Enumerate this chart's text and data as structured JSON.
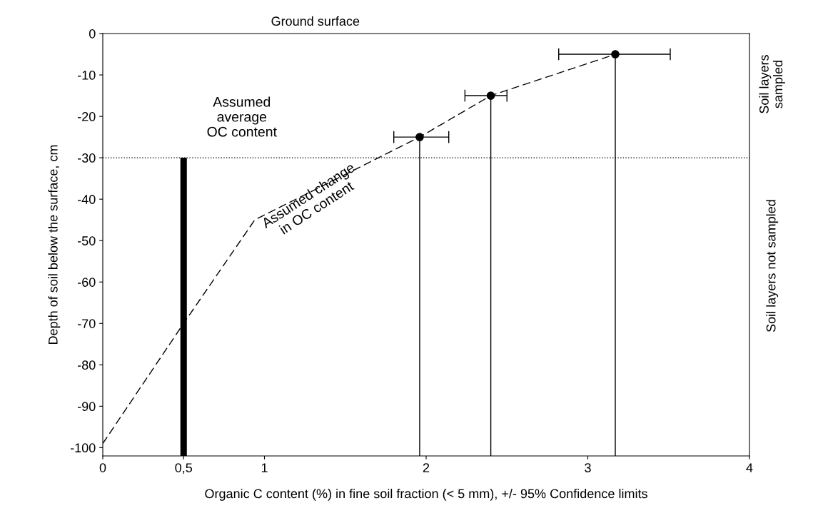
{
  "chart_data": {
    "type": "scatter",
    "title": "Ground surface",
    "xlabel": "Organic C content (%) in fine soil fraction (< 5 mm), +/- 95% Confidence limits",
    "ylabel": "Depth of soil below the surface, cm",
    "xlim": [
      0,
      4
    ],
    "xticks": [
      0,
      {
        "value": 0.5,
        "label": "0,5"
      },
      1,
      2,
      3,
      4
    ],
    "ylim": [
      -102,
      0
    ],
    "yticks": [
      0,
      -10,
      -20,
      -30,
      -40,
      -50,
      -60,
      -70,
      -80,
      -90,
      -100
    ],
    "grid": false,
    "series": [
      {
        "type": "line",
        "color": "#000000",
        "line_style": "dashed",
        "marker": "none",
        "x": [
          0.0,
          0.5,
          0.94,
          1.96,
          2.4,
          3.17
        ],
        "values": [
          -99,
          -70,
          -45,
          -25,
          -15,
          -5
        ]
      },
      {
        "type": "line",
        "color": "#000000",
        "line_style": "solid",
        "marker": "none",
        "x": [
          1.96,
          1.96
        ],
        "values": [
          -25,
          -102
        ]
      },
      {
        "type": "line",
        "color": "#000000",
        "line_style": "solid",
        "marker": "none",
        "x": [
          2.4,
          2.4
        ],
        "values": [
          -15,
          -102
        ]
      },
      {
        "type": "line",
        "color": "#000000",
        "line_style": "solid",
        "marker": "none",
        "x": [
          3.17,
          3.17
        ],
        "values": [
          -5,
          -102
        ]
      },
      {
        "type": "bar",
        "color": "#000000",
        "x": [
          0.5
        ],
        "base": [
          -102
        ],
        "values": [
          72
        ]
      },
      {
        "color": "#000000",
        "marker": "circle",
        "x": [
          3.17,
          2.4,
          1.96
        ],
        "values": [
          -5,
          -15,
          -25
        ],
        "xerrors": [
          [
            2.82,
            3.51
          ],
          [
            2.24,
            2.5
          ],
          [
            1.8,
            2.14
          ]
        ]
      }
    ],
    "ref_lines": [
      {
        "axis": "y",
        "value": -30,
        "color": "#000000",
        "line_style": "dotted"
      }
    ],
    "annotations": [
      "Assumed\naverage\nOC content",
      "Assumed change\nin OC content",
      "Soil layers\nsampled",
      "Soil layers not sampled"
    ]
  }
}
